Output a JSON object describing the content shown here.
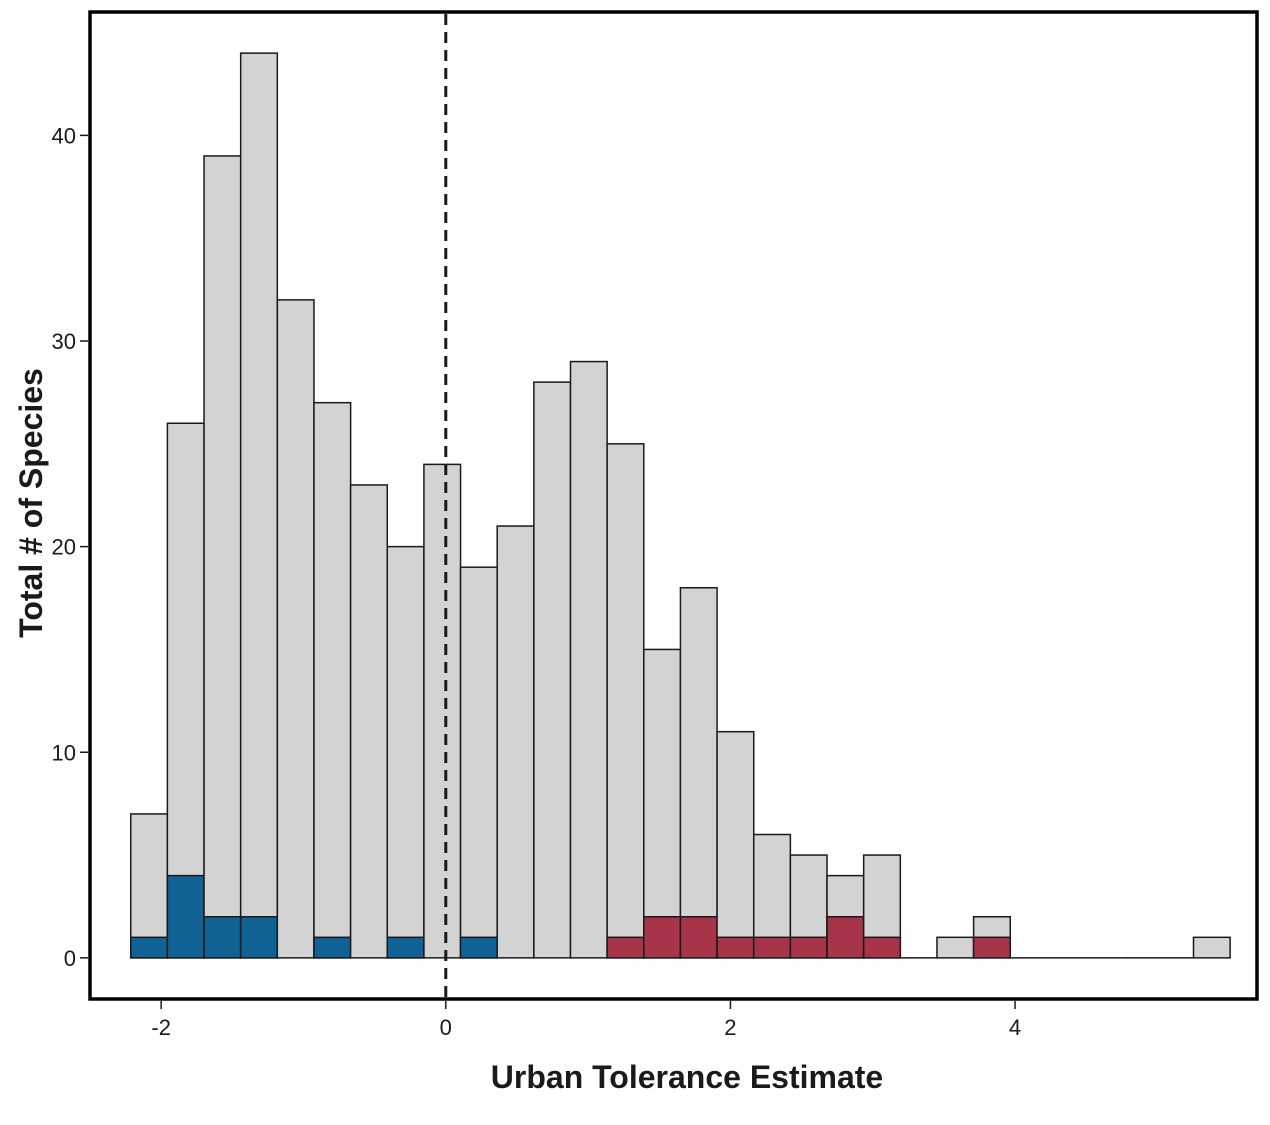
{
  "chart_data": {
    "type": "bar",
    "subtype": "histogram-stacked",
    "xlabel": "Urban Tolerance Estimate",
    "ylabel": "Total # of Species",
    "xlim": [
      -2.5,
      5.7
    ],
    "ylim": [
      -2,
      46
    ],
    "x_ticks": [
      -2,
      0,
      2,
      4
    ],
    "y_ticks": [
      0,
      10,
      20,
      30,
      40
    ],
    "bin_width": 0.2575,
    "bin_centers": [
      -2.085,
      -1.8275,
      -1.57,
      -1.3125,
      -1.055,
      -0.7975,
      -0.54,
      -0.2825,
      -0.025,
      0.2325,
      0.49,
      0.7475,
      1.005,
      1.2625,
      1.52,
      1.7775,
      2.035,
      2.2925,
      2.55,
      2.8075,
      3.065,
      3.3225,
      3.58,
      3.8375,
      4.095,
      4.3525,
      4.61,
      4.8675,
      5.125,
      5.3825
    ],
    "total": [
      7,
      26,
      39,
      44,
      32,
      27,
      23,
      20,
      24,
      19,
      21,
      28,
      29,
      25,
      15,
      18,
      11,
      6,
      5,
      4,
      5,
      0,
      1,
      2,
      0,
      0,
      0,
      0,
      0,
      1
    ],
    "highlight_low": [
      1,
      4,
      2,
      2,
      0,
      1,
      0,
      1,
      0,
      1,
      0,
      0,
      0,
      0,
      0,
      0,
      0,
      0,
      0,
      0,
      0,
      0,
      0,
      0,
      0,
      0,
      0,
      0,
      0,
      0
    ],
    "highlight_high": [
      0,
      0,
      0,
      0,
      0,
      0,
      0,
      0,
      0,
      0,
      0,
      0,
      0,
      1,
      2,
      2,
      1,
      1,
      1,
      2,
      1,
      0,
      0,
      1,
      0,
      0,
      0,
      0,
      0,
      0
    ],
    "reference_line_x": 0,
    "colors": {
      "total": "#d3d3d3",
      "highlight_low": "#106294",
      "highlight_high": "#a8344a",
      "outline": "#1a1a1a"
    }
  }
}
